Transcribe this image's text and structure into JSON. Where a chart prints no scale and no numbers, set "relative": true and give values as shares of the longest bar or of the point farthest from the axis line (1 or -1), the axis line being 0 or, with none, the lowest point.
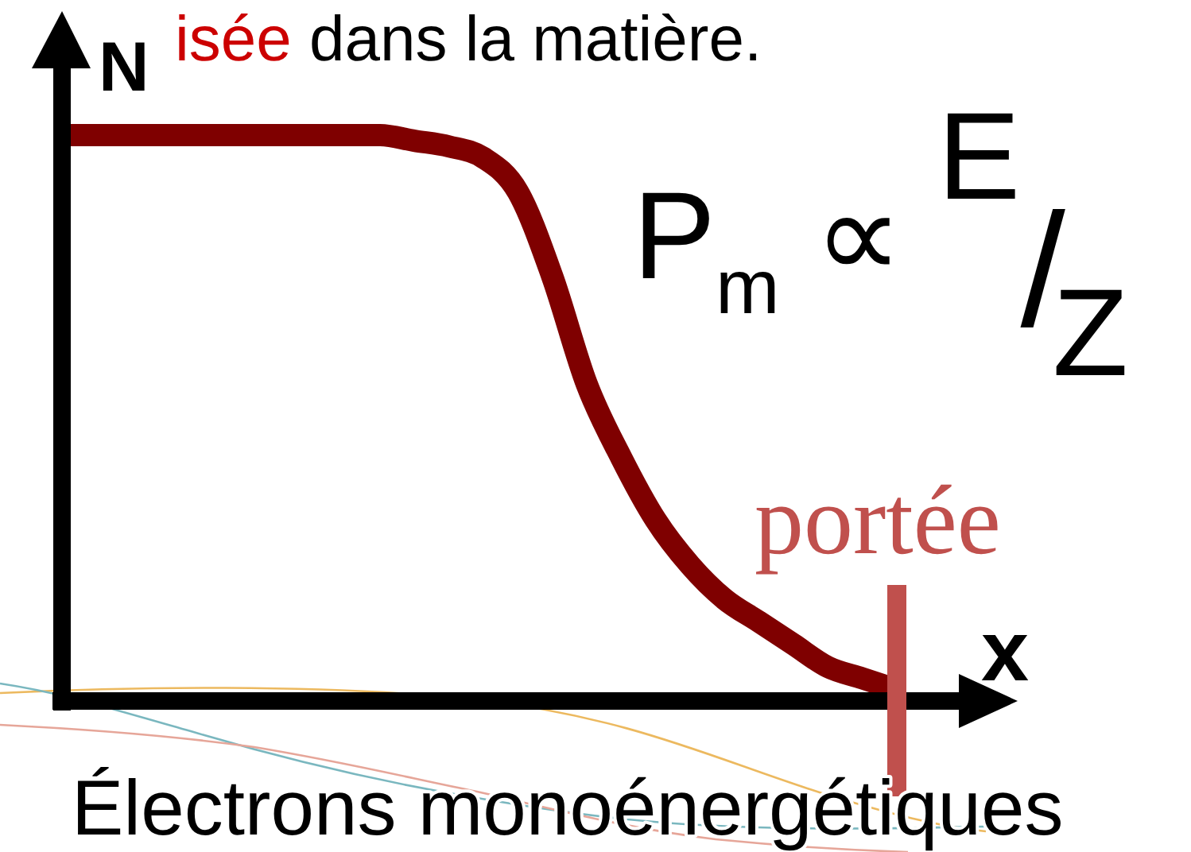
{
  "chart_data": {
    "type": "line",
    "title": "isée dans la matière.",
    "xlabel": "x",
    "ylabel": "N",
    "categories": [
      null,
      null,
      null,
      null,
      null,
      null,
      null,
      null,
      null,
      null,
      null,
      null,
      null,
      null,
      null,
      null,
      null,
      null,
      null,
      null,
      null,
      null,
      null,
      null,
      null
    ],
    "series": [
      {
        "color": "#7f0000",
        "values": [
          1,
          1,
          1,
          1,
          1,
          1,
          1,
          1,
          1,
          1,
          0.99,
          0.98,
          0.96,
          0.9,
          0.75,
          0.56,
          0.43,
          0.32,
          0.24,
          0.18,
          0.14,
          0.1,
          0.06,
          0.04,
          0.02
        ]
      }
    ],
    "relative": true,
    "ref_lines": [
      {
        "axis": "x",
        "label": "portée",
        "color": "#c0504d"
      }
    ],
    "annotations": [
      "P$_{m}$ ∝ E/Z",
      "Électrons monoénergétiques"
    ]
  }
}
